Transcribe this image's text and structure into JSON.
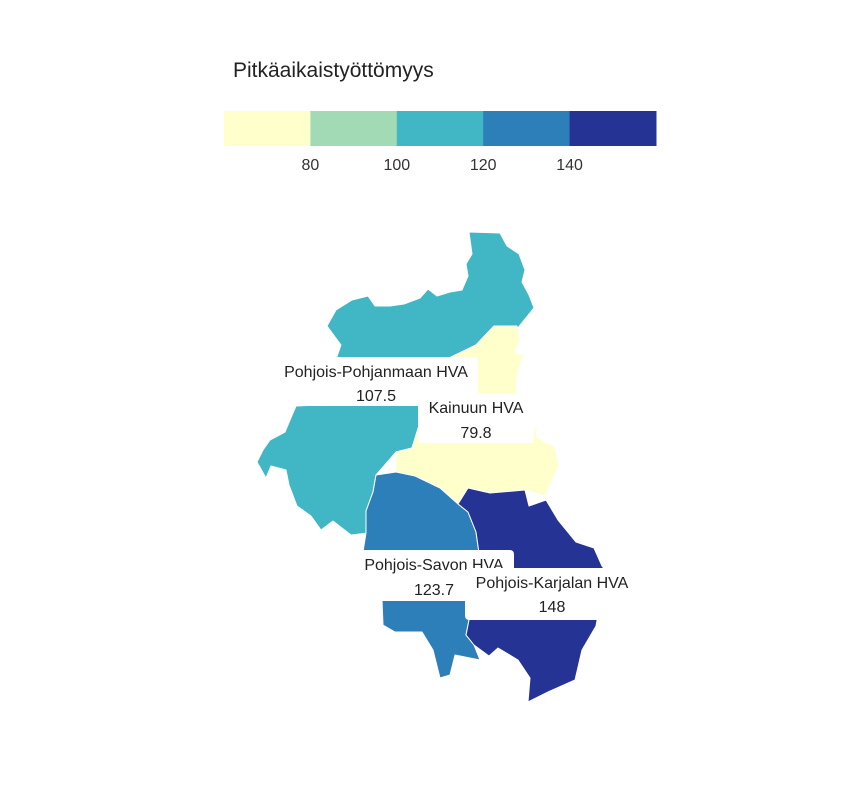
{
  "legend": {
    "title": "Pitkäaikaistyöttömyys",
    "bins": [
      {
        "from": 60,
        "to": 80,
        "color": "#ffffcc"
      },
      {
        "from": 80,
        "to": 100,
        "color": "#a1dab4"
      },
      {
        "from": 100,
        "to": 120,
        "color": "#41b6c4"
      },
      {
        "from": 120,
        "to": 140,
        "color": "#2c7fb8"
      },
      {
        "from": 140,
        "to": 160,
        "color": "#253494"
      }
    ],
    "ticks": [
      "80",
      "100",
      "120",
      "140"
    ]
  },
  "regions": [
    {
      "id": "pohjois-pohjanmaa",
      "name": "Pohjois-Pohjanmaan HVA",
      "value": 107.5,
      "value_label": "107.5",
      "color": "#41b6c4"
    },
    {
      "id": "kainuu",
      "name": "Kainuun HVA",
      "value": 79.8,
      "value_label": "79.8",
      "color": "#ffffcc"
    },
    {
      "id": "pohjois-savo",
      "name": "Pohjois-Savon HVA",
      "value": 123.7,
      "value_label": "123.7",
      "color": "#2c7fb8"
    },
    {
      "id": "pohjois-karjala",
      "name": "Pohjois-Karjalan HVA",
      "value": 148,
      "value_label": "148",
      "color": "#253494"
    }
  ]
}
